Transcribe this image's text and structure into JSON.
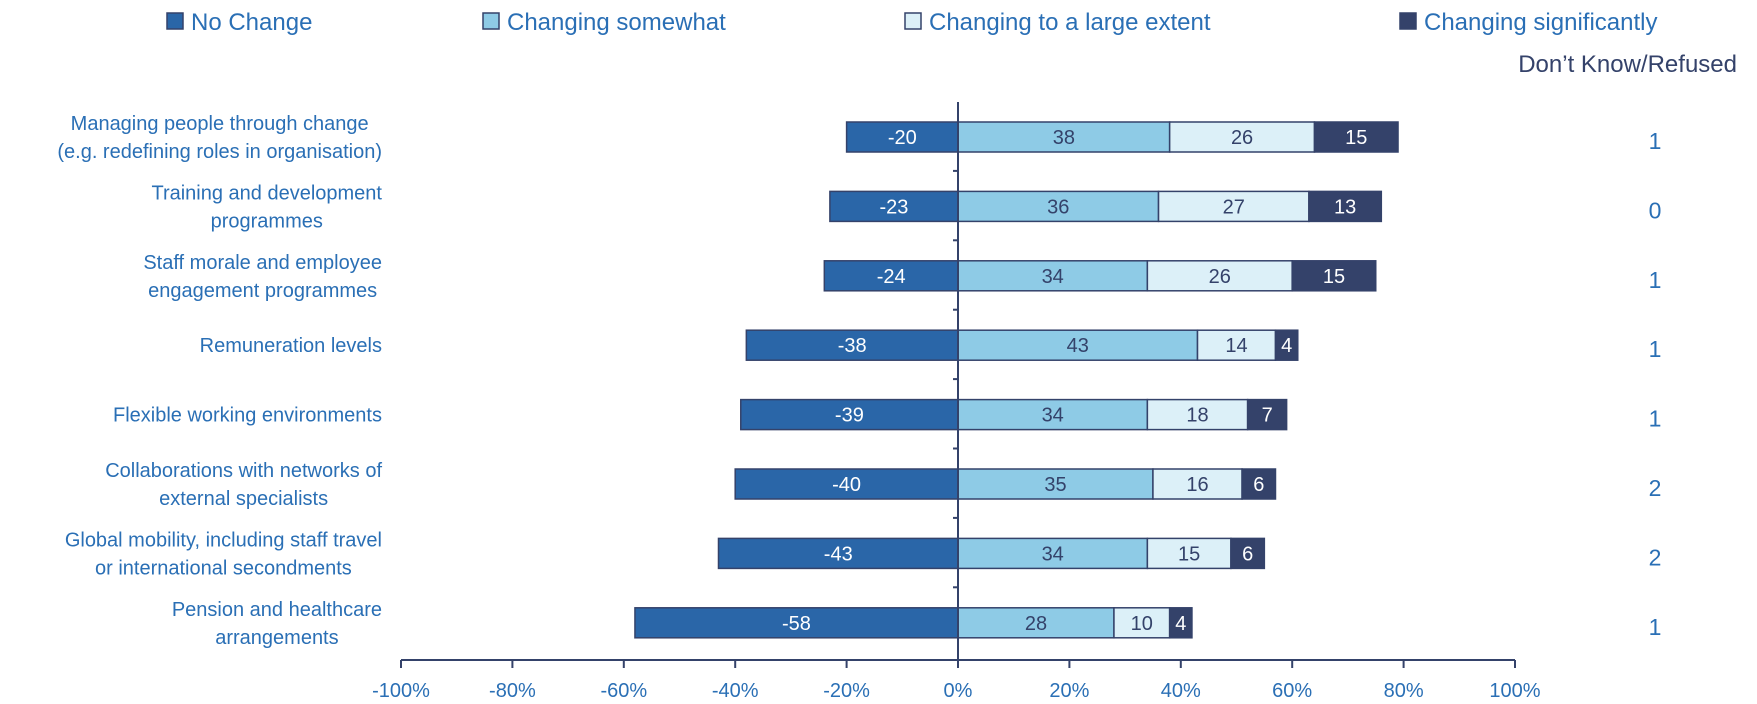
{
  "chart_data": {
    "type": "bar",
    "orientation": "horizontal",
    "stacked": true,
    "categories": [
      [
        "Managing people through change",
        "(e.g. redefining roles in organisation)"
      ],
      [
        "Training and development",
        "programmes"
      ],
      [
        "Staff morale and employee",
        "engagement programmes"
      ],
      [
        "Remuneration levels"
      ],
      [
        "Flexible working environments"
      ],
      [
        "Collaborations with networks of",
        "external specialists"
      ],
      [
        "Global mobility, including staff travel",
        "or international secondments"
      ],
      [
        "Pension and healthcare",
        "arrangements"
      ]
    ],
    "series": [
      {
        "name": "No Change",
        "color": "#2a66a8",
        "label_color": "#ffffff",
        "values": [
          -20,
          -23,
          -24,
          -38,
          -39,
          -40,
          -43,
          -58
        ]
      },
      {
        "name": "Changing somewhat",
        "color": "#8ecbe6",
        "label_color": "#34426a",
        "values": [
          38,
          36,
          34,
          43,
          34,
          35,
          34,
          28
        ]
      },
      {
        "name": "Changing to a large extent",
        "color": "#dcf0f8",
        "label_color": "#34426a",
        "values": [
          26,
          27,
          26,
          14,
          18,
          16,
          15,
          10
        ]
      },
      {
        "name": "Changing significantly",
        "color": "#34426a",
        "label_color": "#ffffff",
        "values": [
          15,
          13,
          15,
          4,
          7,
          6,
          6,
          4
        ]
      }
    ],
    "dont_know": {
      "label": "Don’t Know/Refused",
      "values": [
        "1",
        "0",
        "1",
        "1",
        "1",
        "2",
        "2",
        "1"
      ]
    },
    "x_ticks": [
      "-100%",
      "-80%",
      "-60%",
      "-40%",
      "-20%",
      "0%",
      "20%",
      "40%",
      "60%",
      "80%",
      "100%"
    ],
    "xlim": [
      -100,
      100
    ],
    "grid": false,
    "legend_position": "top"
  }
}
